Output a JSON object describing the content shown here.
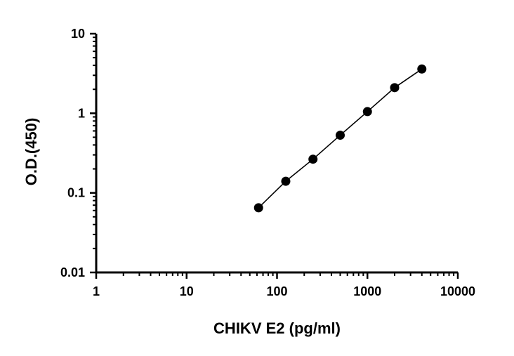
{
  "chart_data": {
    "type": "scatter",
    "title": "",
    "xlabel": "CHIKV E2 (pg/ml)",
    "ylabel": "O.D.(450)",
    "x_scale": "log",
    "y_scale": "log",
    "xlim": [
      1,
      10000
    ],
    "ylim": [
      0.01,
      10
    ],
    "x_ticks": [
      "1",
      "10",
      "100",
      "1000",
      "10000"
    ],
    "y_ticks": [
      "0.01",
      "0.1",
      "1",
      "10"
    ],
    "grid": false,
    "legend": "none",
    "series": [
      {
        "x": [
          62.5,
          125,
          250,
          500,
          1000,
          2000,
          4000
        ],
        "y": [
          0.065,
          0.14,
          0.265,
          0.53,
          1.05,
          2.1,
          3.6
        ],
        "marker": "circle",
        "connected": true,
        "color": "#000000"
      }
    ]
  }
}
